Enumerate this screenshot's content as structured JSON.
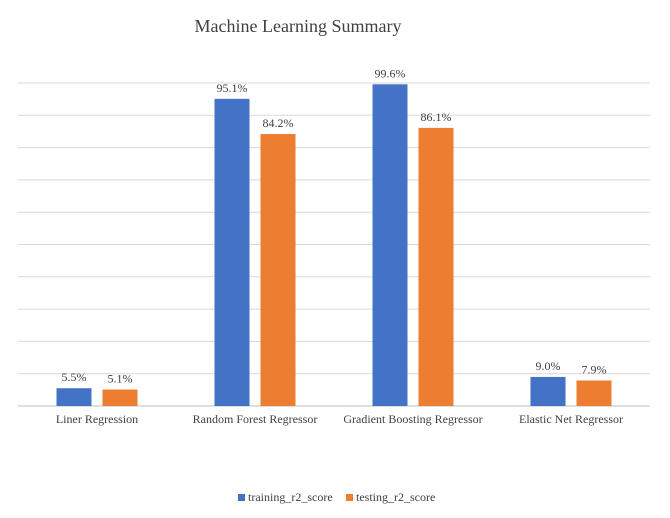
{
  "chart_data": {
    "type": "bar",
    "title": "Machine Learning  Summary",
    "categories": [
      "Liner Regression",
      "Random Forest Regressor",
      "Gradient Boosting Regressor",
      "Elastic Net Regressor"
    ],
    "series": [
      {
        "name": "training_r2_score",
        "color": "#4472c4",
        "values": [
          5.5,
          95.1,
          99.6,
          9.0
        ],
        "labels": [
          "5.5%",
          "95.1%",
          "99.6%",
          "9.0%"
        ]
      },
      {
        "name": "testing_r2_score",
        "color": "#ed7d31",
        "values": [
          5.1,
          84.2,
          86.1,
          7.9
        ],
        "labels": [
          "5.1%",
          "84.2%",
          "86.1%",
          "7.9%"
        ]
      }
    ],
    "ylim": [
      0,
      100
    ],
    "grid": true,
    "legend": "bottom"
  }
}
